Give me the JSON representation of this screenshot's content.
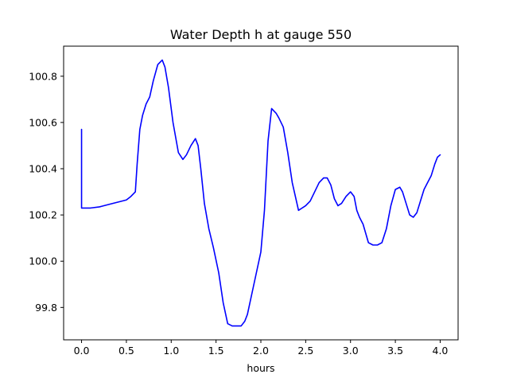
{
  "chart_data": {
    "type": "line",
    "title": "Water Depth h at gauge 550",
    "xlabel": "hours",
    "ylabel": "",
    "xlim": [
      -0.2,
      4.2
    ],
    "ylim": [
      99.66,
      100.93
    ],
    "grid": false,
    "legend": "none",
    "xticks": [
      0.0,
      0.5,
      1.0,
      1.5,
      2.0,
      2.5,
      3.0,
      3.5,
      4.0
    ],
    "xtick_labels": [
      "0.0",
      "0.5",
      "1.0",
      "1.5",
      "2.0",
      "2.5",
      "3.0",
      "3.5",
      "4.0"
    ],
    "yticks": [
      99.8,
      100.0,
      100.2,
      100.4,
      100.6,
      100.8
    ],
    "ytick_labels": [
      "99.8",
      "100.0",
      "100.2",
      "100.4",
      "100.6",
      "100.8"
    ],
    "colors": {
      "line": "#0000ff",
      "axes": "#000000"
    },
    "series": [
      {
        "color": "#0000ff",
        "x": [
          0,
          0,
          0.1,
          0.2,
          0.3,
          0.4,
          0.5,
          0.55,
          0.6,
          0.62,
          0.65,
          0.68,
          0.72,
          0.76,
          0.8,
          0.85,
          0.9,
          0.93,
          0.97,
          1.02,
          1.08,
          1.13,
          1.17,
          1.22,
          1.27,
          1.3,
          1.33,
          1.37,
          1.42,
          1.47,
          1.53,
          1.58,
          1.63,
          1.68,
          1.73,
          1.78,
          1.82,
          1.85,
          1.9,
          1.95,
          2.0,
          2.04,
          2.08,
          2.12,
          2.17,
          2.2,
          2.25,
          2.3,
          2.35,
          2.42,
          2.46,
          2.5,
          2.55,
          2.6,
          2.65,
          2.7,
          2.74,
          2.78,
          2.82,
          2.86,
          2.9,
          2.95,
          3.0,
          3.04,
          3.07,
          3.1,
          3.14,
          3.17,
          3.2,
          3.25,
          3.3,
          3.35,
          3.4,
          3.45,
          3.5,
          3.55,
          3.58,
          3.62,
          3.66,
          3.7,
          3.74,
          3.78,
          3.82,
          3.86,
          3.9,
          3.94,
          3.97,
          4.0
        ],
        "y": [
          100.57,
          100.23,
          100.23,
          100.235,
          100.245,
          100.255,
          100.265,
          100.28,
          100.3,
          100.42,
          100.57,
          100.63,
          100.68,
          100.71,
          100.78,
          100.85,
          100.87,
          100.84,
          100.75,
          100.6,
          100.47,
          100.44,
          100.46,
          100.5,
          100.53,
          100.5,
          100.4,
          100.25,
          100.14,
          100.06,
          99.95,
          99.82,
          99.73,
          99.72,
          99.72,
          99.72,
          99.74,
          99.77,
          99.86,
          99.95,
          100.04,
          100.22,
          100.52,
          100.66,
          100.64,
          100.62,
          100.58,
          100.47,
          100.34,
          100.22,
          100.23,
          100.24,
          100.26,
          100.3,
          100.34,
          100.36,
          100.36,
          100.33,
          100.27,
          100.24,
          100.25,
          100.28,
          100.3,
          100.28,
          100.22,
          100.19,
          100.16,
          100.12,
          100.08,
          100.07,
          100.07,
          100.08,
          100.14,
          100.24,
          100.31,
          100.32,
          100.3,
          100.25,
          100.2,
          100.19,
          100.21,
          100.26,
          100.31,
          100.34,
          100.37,
          100.42,
          100.45,
          100.46
        ]
      }
    ]
  }
}
